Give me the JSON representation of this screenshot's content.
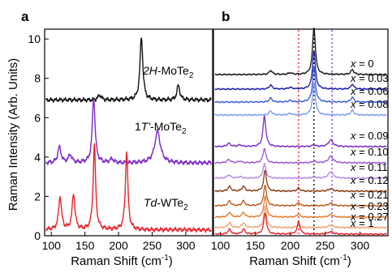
{
  "chart_data": [
    {
      "type": "line",
      "panel_label": "a",
      "xlabel": "Raman Shift (cm",
      "xlabel_sup": "-1",
      "xlabel_end": ")",
      "ylabel": "Raman Intensity (Arb. Units)",
      "xlim": [
        90,
        340
      ],
      "ylim": [
        0,
        10.5
      ],
      "xticks": [
        100,
        150,
        200,
        250,
        300
      ],
      "yticks": [
        0,
        2,
        4,
        6,
        8,
        10
      ],
      "grid": false,
      "series": [
        {
          "name": "2H-MoTe2",
          "label_parts": {
            "italic": "2H",
            "pre": "",
            "text": "-MoTe",
            "sub": "2"
          },
          "color": "#111111",
          "baseline": 6.9,
          "peaks": [
            [
              172,
              0.25,
              3
            ],
            [
              234,
              3.2,
              2.5
            ],
            [
              289,
              0.75,
              2.5
            ]
          ]
        },
        {
          "name": "1T'-MoTe2",
          "label_parts": {
            "italic": "T'",
            "pre": "1",
            "text": "-MoTe",
            "sub": "2"
          },
          "color": "#7a28c8",
          "baseline": 3.7,
          "peaks": [
            [
              112,
              0.8,
              3
            ],
            [
              128,
              0.4,
              3
            ],
            [
              163,
              3.3,
              2.5
            ],
            [
              190,
              0.2,
              3
            ],
            [
              258,
              1.6,
              5
            ]
          ]
        },
        {
          "name": "Td-WTe2",
          "label_parts": {
            "italic": "Td",
            "pre": "",
            "text": "-WTe",
            "sub": "2"
          },
          "color": "#e8232b",
          "baseline": 0.3,
          "peaks": [
            [
              113,
              1.7,
              2.5
            ],
            [
              133,
              1.8,
              2.5
            ],
            [
              164,
              4.3,
              2.2
            ],
            [
              212,
              4.0,
              2.2
            ]
          ]
        }
      ]
    },
    {
      "type": "line",
      "panel_label": "b",
      "xlabel": "Raman Shift (cm",
      "xlabel_sup": "-1",
      "xlabel_end": ")",
      "xlim": [
        90,
        340
      ],
      "xticks": [
        100,
        150,
        200,
        250,
        300
      ],
      "grid": false,
      "vlines": [
        {
          "x": 212,
          "color": "#e8232b"
        },
        {
          "x": 234,
          "color": "#111111"
        },
        {
          "x": 260,
          "color": "#8a3ee0"
        }
      ],
      "series": [
        {
          "name": "x = 0",
          "x_value": "0",
          "color": "#111111"
        },
        {
          "name": "x = 0.03",
          "x_value": "0.03",
          "color": "#1a1aa8"
        },
        {
          "name": "x = 0.06",
          "x_value": "0.06",
          "color": "#3a5ed8"
        },
        {
          "name": "x = 0.08",
          "x_value": "0.08",
          "color": "#7b9cf0"
        },
        {
          "name": "x = 0.09",
          "x_value": "0.09",
          "color": "#7a28c8"
        },
        {
          "name": "x = 0.10",
          "x_value": "0.10",
          "color": "#9a56d8"
        },
        {
          "name": "x = 0.11",
          "x_value": "0.11",
          "color": "#b68ae4"
        },
        {
          "name": "x = 0.12",
          "x_value": "0.12",
          "color": "#8a3c10"
        },
        {
          "name": "x = 0.21",
          "x_value": "0.21",
          "color": "#b85a18"
        },
        {
          "name": "x = 0.23",
          "x_value": "0.23",
          "color": "#e07a30"
        },
        {
          "name": "x = 0.27",
          "x_value": "0.27",
          "color": "#f0a070"
        },
        {
          "name": "x = 1",
          "x_value": "1",
          "color": "#e8232b"
        }
      ]
    }
  ]
}
